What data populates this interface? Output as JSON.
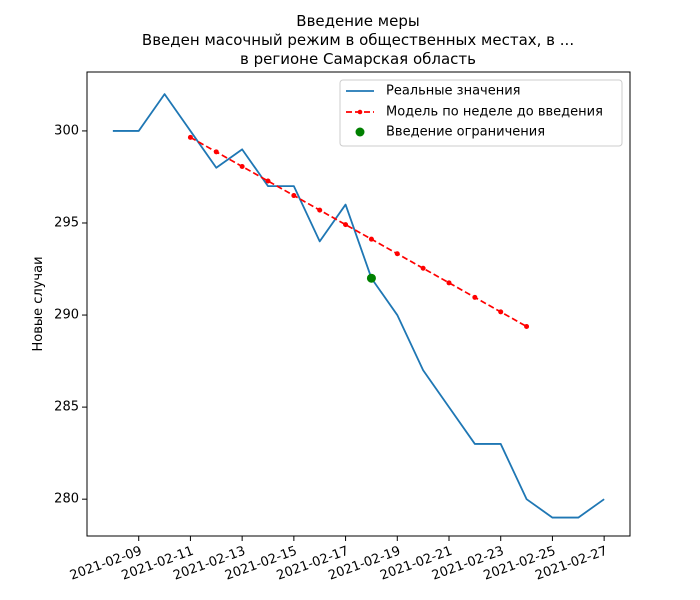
{
  "chart_data": {
    "type": "line",
    "title_lines": [
      "Введение меры",
      "Введен масочный режим в общественных местах, в ...",
      "в регионе Самарская область"
    ],
    "xlabel": "",
    "ylabel": "Новые случаи",
    "xlim": [
      "2021-02-07",
      "2021-02-28"
    ],
    "ylim": [
      278,
      303.2
    ],
    "x_ticks": [
      "2021-02-09",
      "2021-02-11",
      "2021-02-13",
      "2021-02-15",
      "2021-02-17",
      "2021-02-19",
      "2021-02-21",
      "2021-02-23",
      "2021-02-25",
      "2021-02-27"
    ],
    "y_ticks": [
      280,
      285,
      290,
      295,
      300
    ],
    "grid": false,
    "legend_position": "top-right",
    "series": [
      {
        "name": "Реальные значения",
        "style": "solid",
        "color": "#1f77b4",
        "x": [
          "2021-02-08",
          "2021-02-09",
          "2021-02-10",
          "2021-02-11",
          "2021-02-12",
          "2021-02-13",
          "2021-02-14",
          "2021-02-15",
          "2021-02-16",
          "2021-02-17",
          "2021-02-18",
          "2021-02-19",
          "2021-02-20",
          "2021-02-21",
          "2021-02-22",
          "2021-02-23",
          "2021-02-24",
          "2021-02-25",
          "2021-02-26",
          "2021-02-27"
        ],
        "y": [
          300,
          300,
          302,
          300,
          298,
          299,
          297,
          297,
          294,
          296,
          292,
          290,
          287,
          285,
          283,
          283,
          280,
          279,
          279,
          280
        ]
      },
      {
        "name": "Модель по неделе до введения",
        "style": "dashed-markers",
        "color": "#ff0000",
        "x": [
          "2021-02-11",
          "2021-02-12",
          "2021-02-13",
          "2021-02-14",
          "2021-02-15",
          "2021-02-16",
          "2021-02-17",
          "2021-02-18",
          "2021-02-19",
          "2021-02-20",
          "2021-02-21",
          "2021-02-22",
          "2021-02-23",
          "2021-02-24"
        ],
        "y": [
          299.65,
          298.86,
          298.07,
          297.28,
          296.49,
          295.7,
          294.91,
          294.12,
          293.33,
          292.54,
          291.75,
          290.96,
          290.17,
          289.38
        ]
      },
      {
        "name": "Введение ограничения",
        "style": "point",
        "color": "#008000",
        "x": [
          "2021-02-18"
        ],
        "y": [
          292
        ]
      }
    ]
  }
}
